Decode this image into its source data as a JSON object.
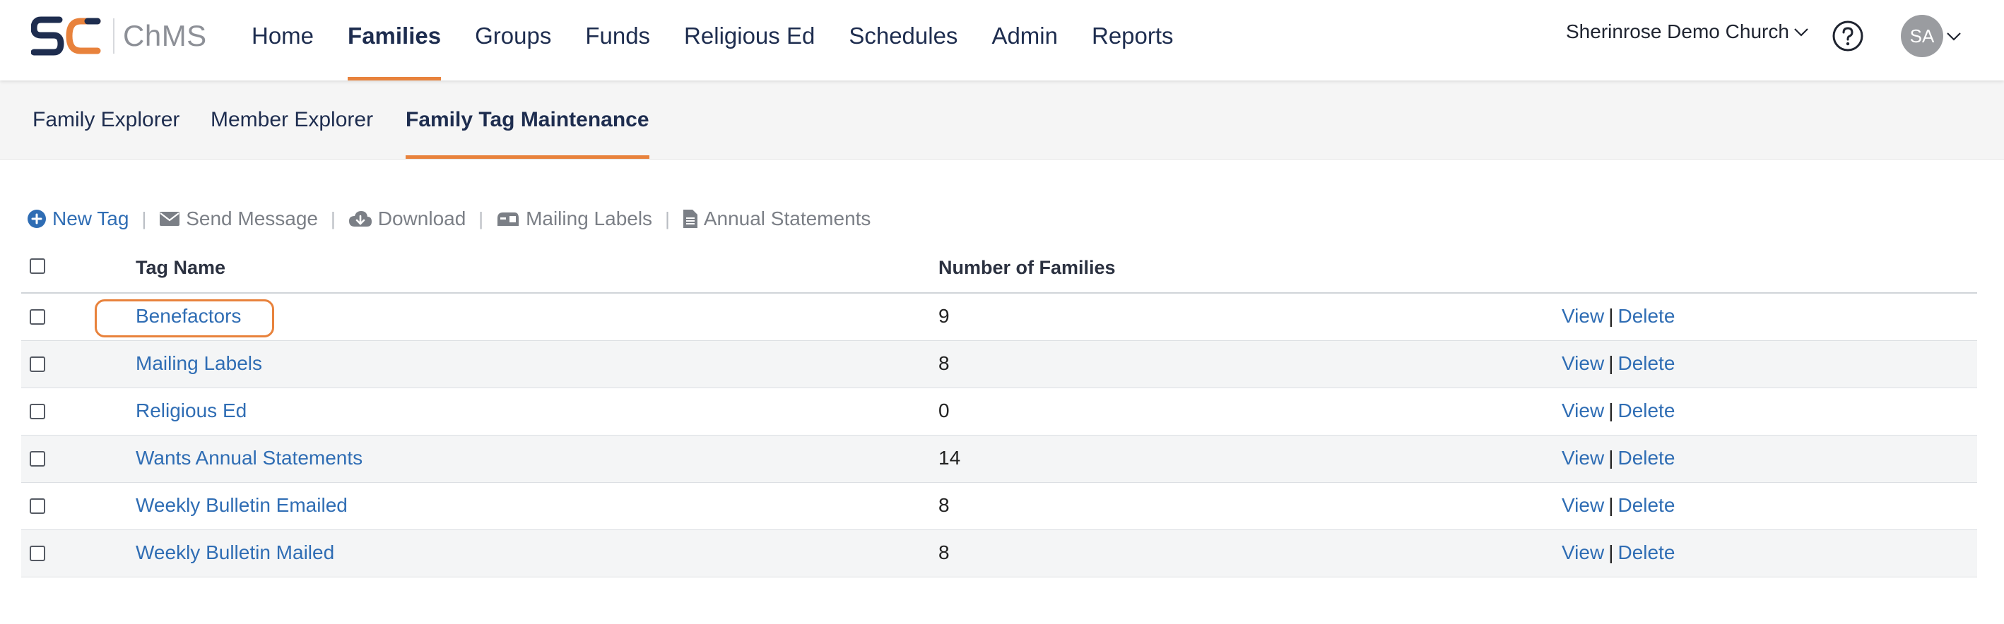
{
  "brand": {
    "app_name": "ChMS",
    "accent_color": "#e8823c",
    "navy_color": "#1e2d4f",
    "link_color": "#2f6db4"
  },
  "nav": {
    "items": [
      {
        "label": "Home"
      },
      {
        "label": "Families",
        "active": true
      },
      {
        "label": "Groups"
      },
      {
        "label": "Funds"
      },
      {
        "label": "Religious Ed"
      },
      {
        "label": "Schedules"
      },
      {
        "label": "Admin"
      },
      {
        "label": "Reports"
      }
    ],
    "church": "Sherinrose Demo Church",
    "help_icon": "question-circle-icon",
    "avatar_initials": "SA"
  },
  "subnav": {
    "items": [
      {
        "label": "Family Explorer"
      },
      {
        "label": "Member Explorer"
      },
      {
        "label": "Family Tag Maintenance",
        "active": true
      }
    ]
  },
  "toolbar": {
    "new_tag": "New Tag",
    "send_message": "Send Message",
    "download": "Download",
    "mailing_labels": "Mailing Labels",
    "annual_statements": "Annual Statements",
    "separator": "|"
  },
  "table": {
    "headers": {
      "name": "Tag Name",
      "count": "Number of Families"
    },
    "view_label": "View",
    "delete_label": "Delete",
    "action_separator": "|",
    "rows": [
      {
        "name": "Benefactors",
        "count": "9",
        "highlighted": true
      },
      {
        "name": "Mailing Labels",
        "count": "8"
      },
      {
        "name": "Religious Ed",
        "count": "0"
      },
      {
        "name": "Wants Annual Statements",
        "count": "14"
      },
      {
        "name": "Weekly Bulletin Emailed",
        "count": "8"
      },
      {
        "name": "Weekly Bulletin Mailed",
        "count": "8"
      }
    ]
  }
}
